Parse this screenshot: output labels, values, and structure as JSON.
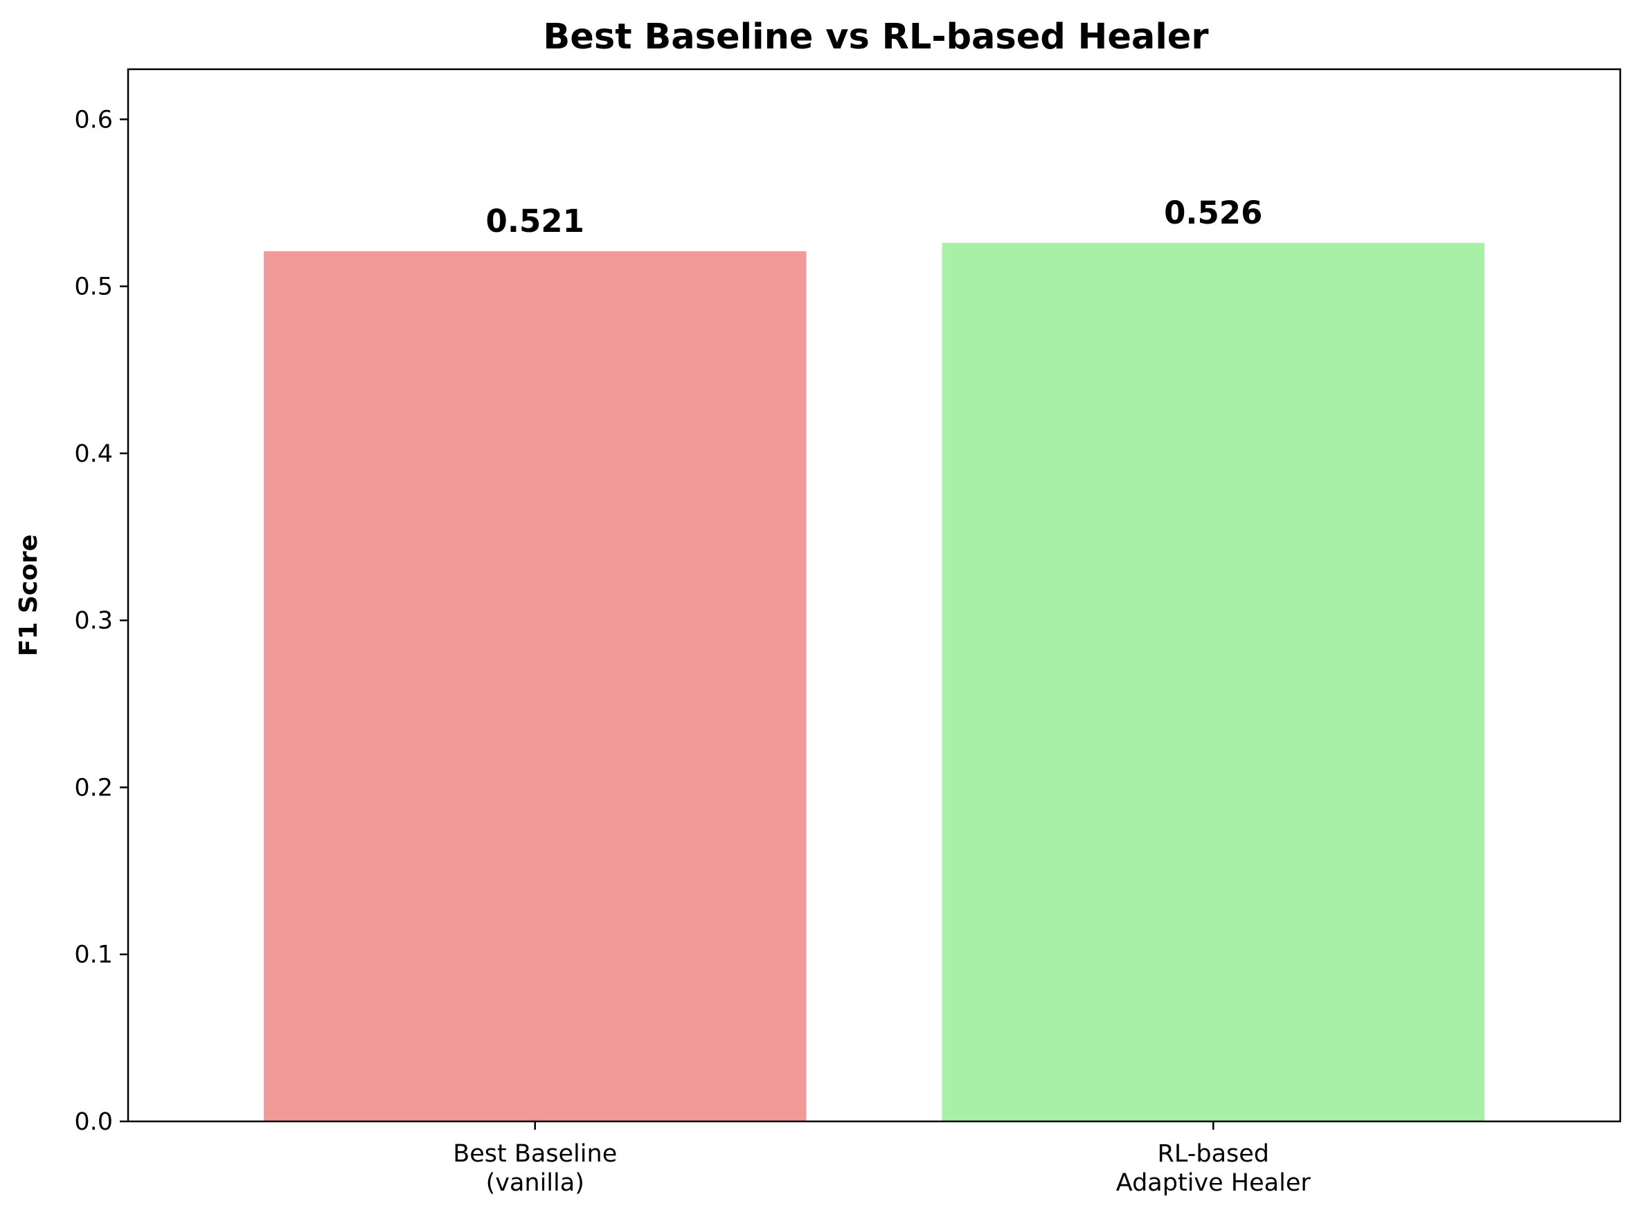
{
  "chart_data": {
    "type": "bar",
    "title": "Best Baseline vs RL-based Healer",
    "xlabel": "",
    "ylabel": "F1 Score",
    "categories": [
      [
        "Best Baseline",
        "(vanilla)"
      ],
      [
        "RL-based",
        "Adaptive Healer"
      ]
    ],
    "values": [
      0.521,
      0.526
    ],
    "value_labels": [
      "0.521",
      "0.526"
    ],
    "colors": [
      "#f29999",
      "#a8f0a8"
    ],
    "ylim": [
      0,
      0.63
    ],
    "yticks": [
      0.0,
      0.1,
      0.2,
      0.3,
      0.4,
      0.5,
      0.6
    ],
    "ytick_labels": [
      "0.0",
      "0.1",
      "0.2",
      "0.3",
      "0.4",
      "0.5",
      "0.6"
    ],
    "grid": false,
    "legend": null
  }
}
